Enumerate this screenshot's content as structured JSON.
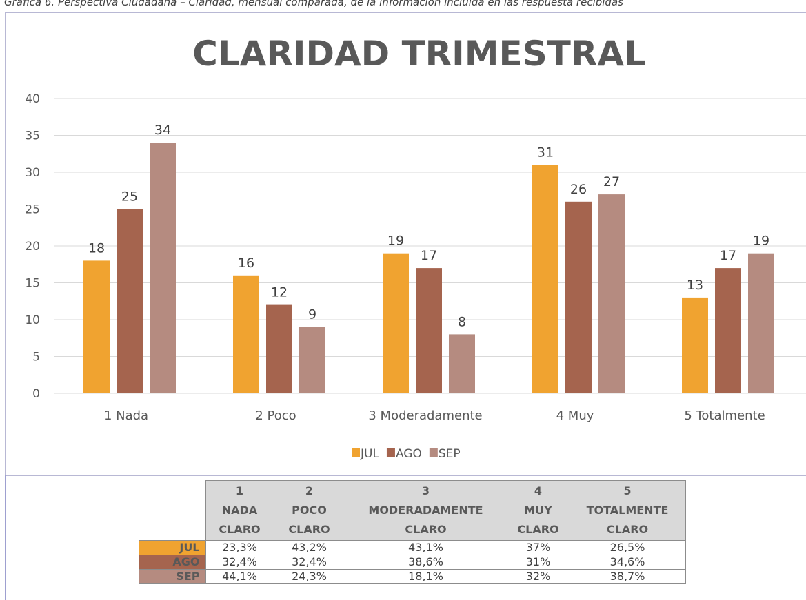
{
  "caption": "Gráfica 6. Perspectiva Ciudadana – Claridad, mensual comparada, de la información incluida en las respuesta recibidas",
  "chart_data": {
    "type": "bar",
    "title": "CLARIDAD TRIMESTRAL",
    "categories": [
      "1 Nada",
      "2 Poco",
      "3 Moderadamente",
      "4 Muy",
      "5 Totalmente"
    ],
    "series": [
      {
        "name": "JUL",
        "color": "#f0a330",
        "values": [
          18,
          16,
          19,
          31,
          13
        ]
      },
      {
        "name": "AGO",
        "color": "#a5644e",
        "values": [
          25,
          12,
          17,
          26,
          17
        ]
      },
      {
        "name": "SEP",
        "color": "#b58b80",
        "values": [
          34,
          9,
          8,
          27,
          19
        ]
      }
    ],
    "ylim": [
      0,
      40
    ],
    "yticks": [
      0,
      5,
      10,
      15,
      20,
      25,
      30,
      35,
      40
    ],
    "grid": true,
    "legend": "bottom"
  },
  "table": {
    "header": [
      [
        "1",
        "NADA",
        "CLARO"
      ],
      [
        "2",
        "POCO",
        "CLARO"
      ],
      [
        "3",
        "MODERADAMENTE",
        "CLARO"
      ],
      [
        "4",
        "MUY",
        "CLARO"
      ],
      [
        "5",
        "TOTALMENTE",
        "CLARO"
      ]
    ],
    "rows": [
      {
        "label": "JUL",
        "color": "#f0a330",
        "cells": [
          "23,3%",
          "43,2%",
          "43,1%",
          "37%",
          "26,5%"
        ]
      },
      {
        "label": "AGO",
        "color": "#a5644e",
        "cells": [
          "32,4%",
          "32,4%",
          "38,6%",
          "31%",
          "34,6%"
        ]
      },
      {
        "label": "SEP",
        "color": "#b58b80",
        "cells": [
          "44,1%",
          "24,3%",
          "18,1%",
          "32%",
          "38,7%"
        ]
      }
    ]
  }
}
